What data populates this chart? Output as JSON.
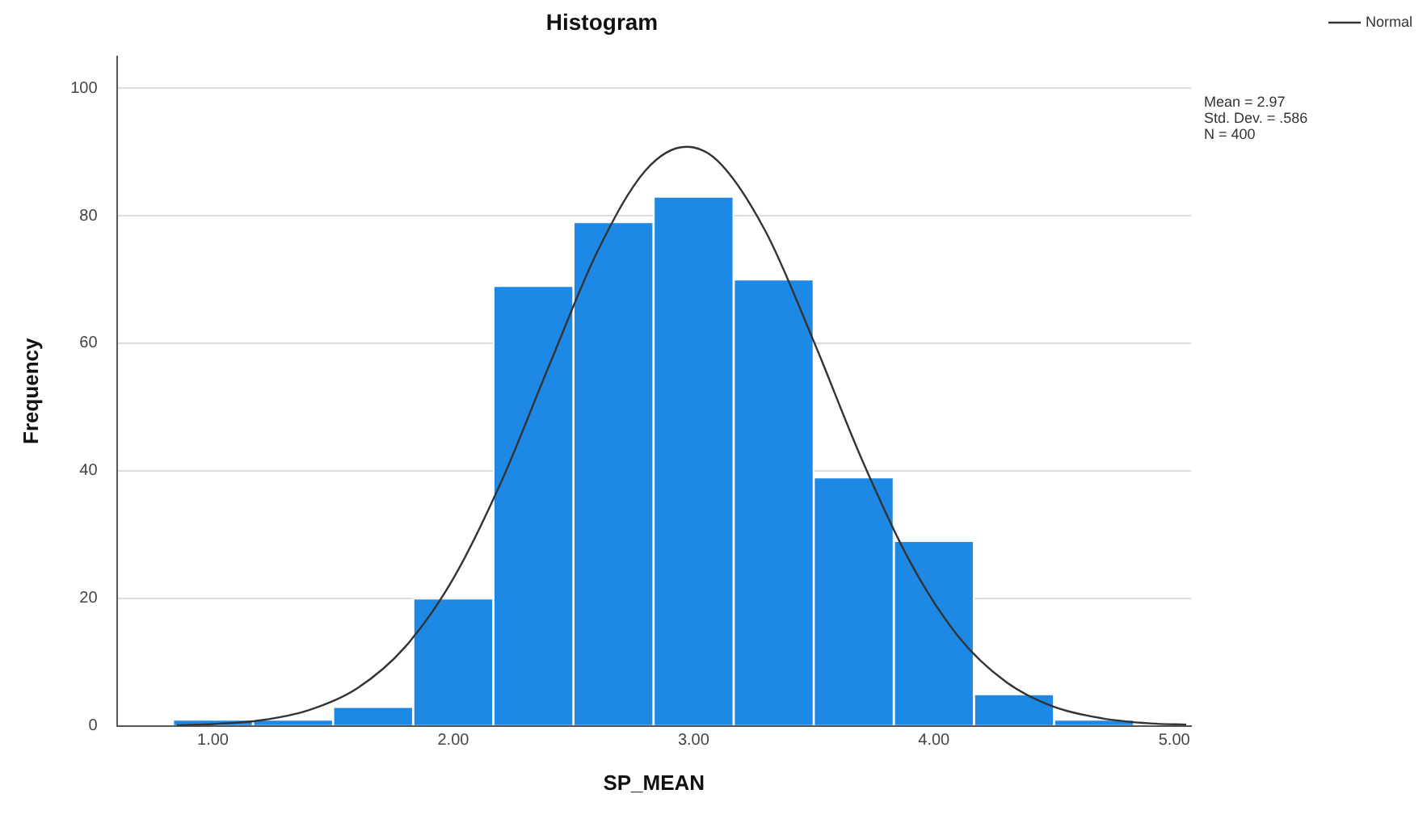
{
  "chart_data": {
    "type": "histogram",
    "title": "Histogram",
    "xlabel": "SP_MEAN",
    "ylabel": "Frequency",
    "bins": [
      0.833,
      1.167,
      1.5,
      1.833,
      2.167,
      2.5,
      2.833,
      3.167,
      3.5,
      3.833,
      4.167,
      4.5,
      4.833
    ],
    "values": [
      1,
      1,
      3,
      20,
      69,
      79,
      83,
      70,
      39,
      29,
      5,
      1
    ],
    "color": "#1e88e5",
    "series": [
      {
        "name": "Normal",
        "type": "line",
        "color": "#333333",
        "x": [
          0.85,
          1.0,
          1.2,
          1.4,
          1.6,
          1.8,
          2.0,
          2.2,
          2.4,
          2.6,
          2.8,
          2.97,
          3.1,
          3.3,
          3.5,
          3.7,
          3.9,
          4.1,
          4.3,
          4.5,
          4.7,
          4.9,
          5.05
        ],
        "values": [
          0.1,
          0.3,
          0.9,
          2.5,
          5.9,
          12.4,
          23.1,
          38.3,
          56.6,
          74.4,
          87.1,
          90.8,
          88.6,
          77.5,
          60.3,
          41.8,
          25.8,
          14.1,
          6.9,
          3.0,
          1.2,
          0.4,
          0.2
        ]
      }
    ],
    "xlim": [
      0.6,
      5.07
    ],
    "ylim": [
      0,
      105
    ],
    "xticks": [
      {
        "value": 1,
        "label": "1.00"
      },
      {
        "value": 2,
        "label": "2.00"
      },
      {
        "value": 3,
        "label": "3.00"
      },
      {
        "value": 4,
        "label": "4.00"
      },
      {
        "value": 5,
        "label": "5.00"
      }
    ],
    "yticks": [
      0,
      20,
      40,
      60,
      80,
      100
    ],
    "annotations": [
      "Mean = 2.97",
      "Std. Dev. = .586",
      "N = 400"
    ],
    "grid": "y",
    "legend": "top right",
    "marker": "none"
  }
}
